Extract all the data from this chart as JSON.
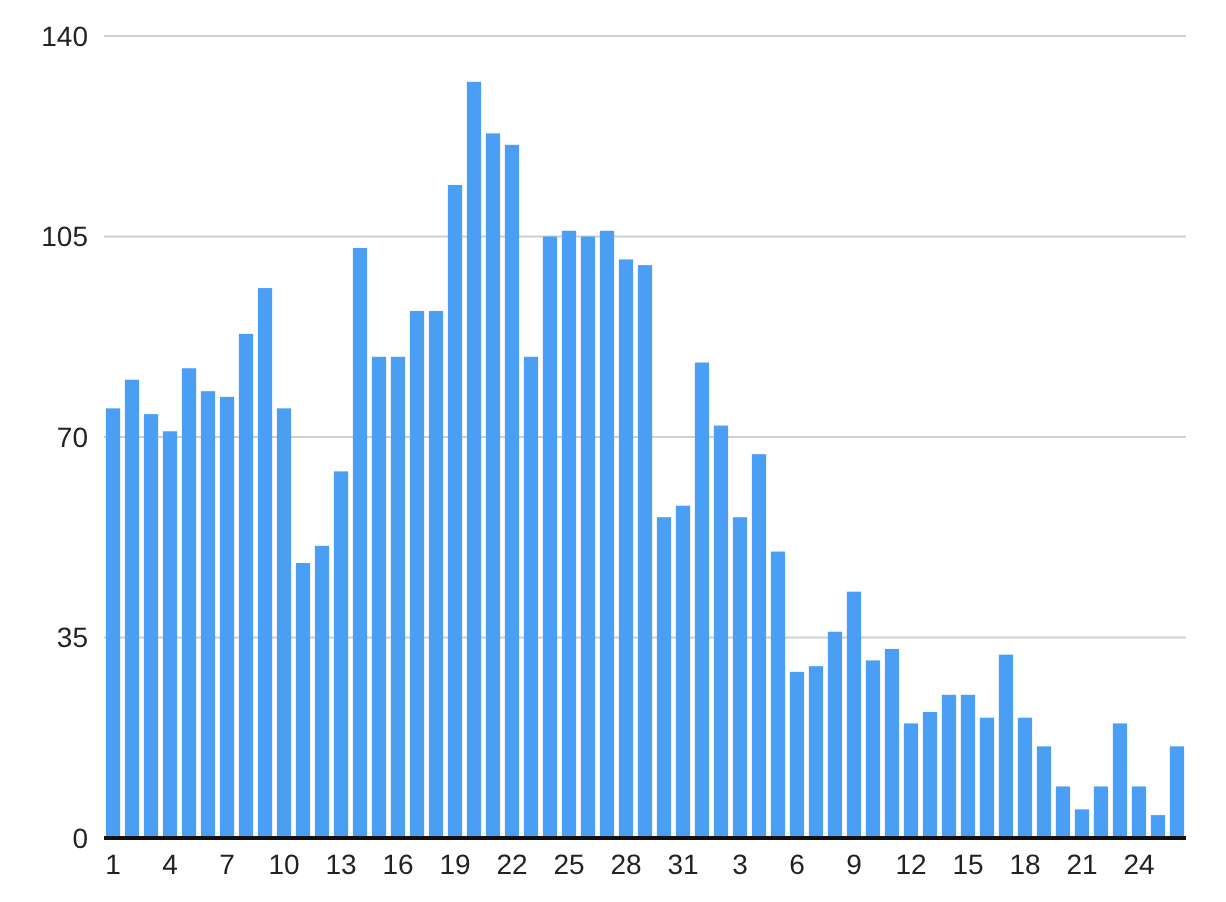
{
  "chart_data": {
    "type": "bar",
    "categories": [
      "1",
      null,
      null,
      "4",
      null,
      null,
      "7",
      null,
      null,
      "10",
      null,
      null,
      "13",
      null,
      null,
      "16",
      null,
      null,
      "19",
      null,
      null,
      "22",
      null,
      null,
      "25",
      null,
      null,
      "28",
      null,
      null,
      "31",
      null,
      null,
      "3",
      null,
      null,
      "6",
      null,
      null,
      "9",
      null,
      null,
      "12",
      null,
      null,
      "15",
      null,
      null,
      "18",
      null,
      null,
      "21",
      null,
      null,
      "24",
      null,
      null
    ],
    "values": [
      75,
      80,
      74,
      71,
      82,
      78,
      77,
      88,
      96,
      75,
      48,
      51,
      64,
      103,
      84,
      84,
      92,
      92,
      114,
      132,
      123,
      121,
      84,
      105,
      106,
      105,
      106,
      101,
      100,
      56,
      58,
      83,
      72,
      56,
      67,
      50,
      29,
      30,
      36,
      43,
      31,
      33,
      20,
      22,
      25,
      25,
      21,
      32,
      21,
      16,
      9,
      5,
      9,
      20,
      9,
      4,
      16
    ],
    "color": "#4a9ff5",
    "ylim": [
      0,
      140
    ],
    "yticks": [
      0,
      35,
      70,
      105,
      140
    ],
    "grid": "y"
  }
}
